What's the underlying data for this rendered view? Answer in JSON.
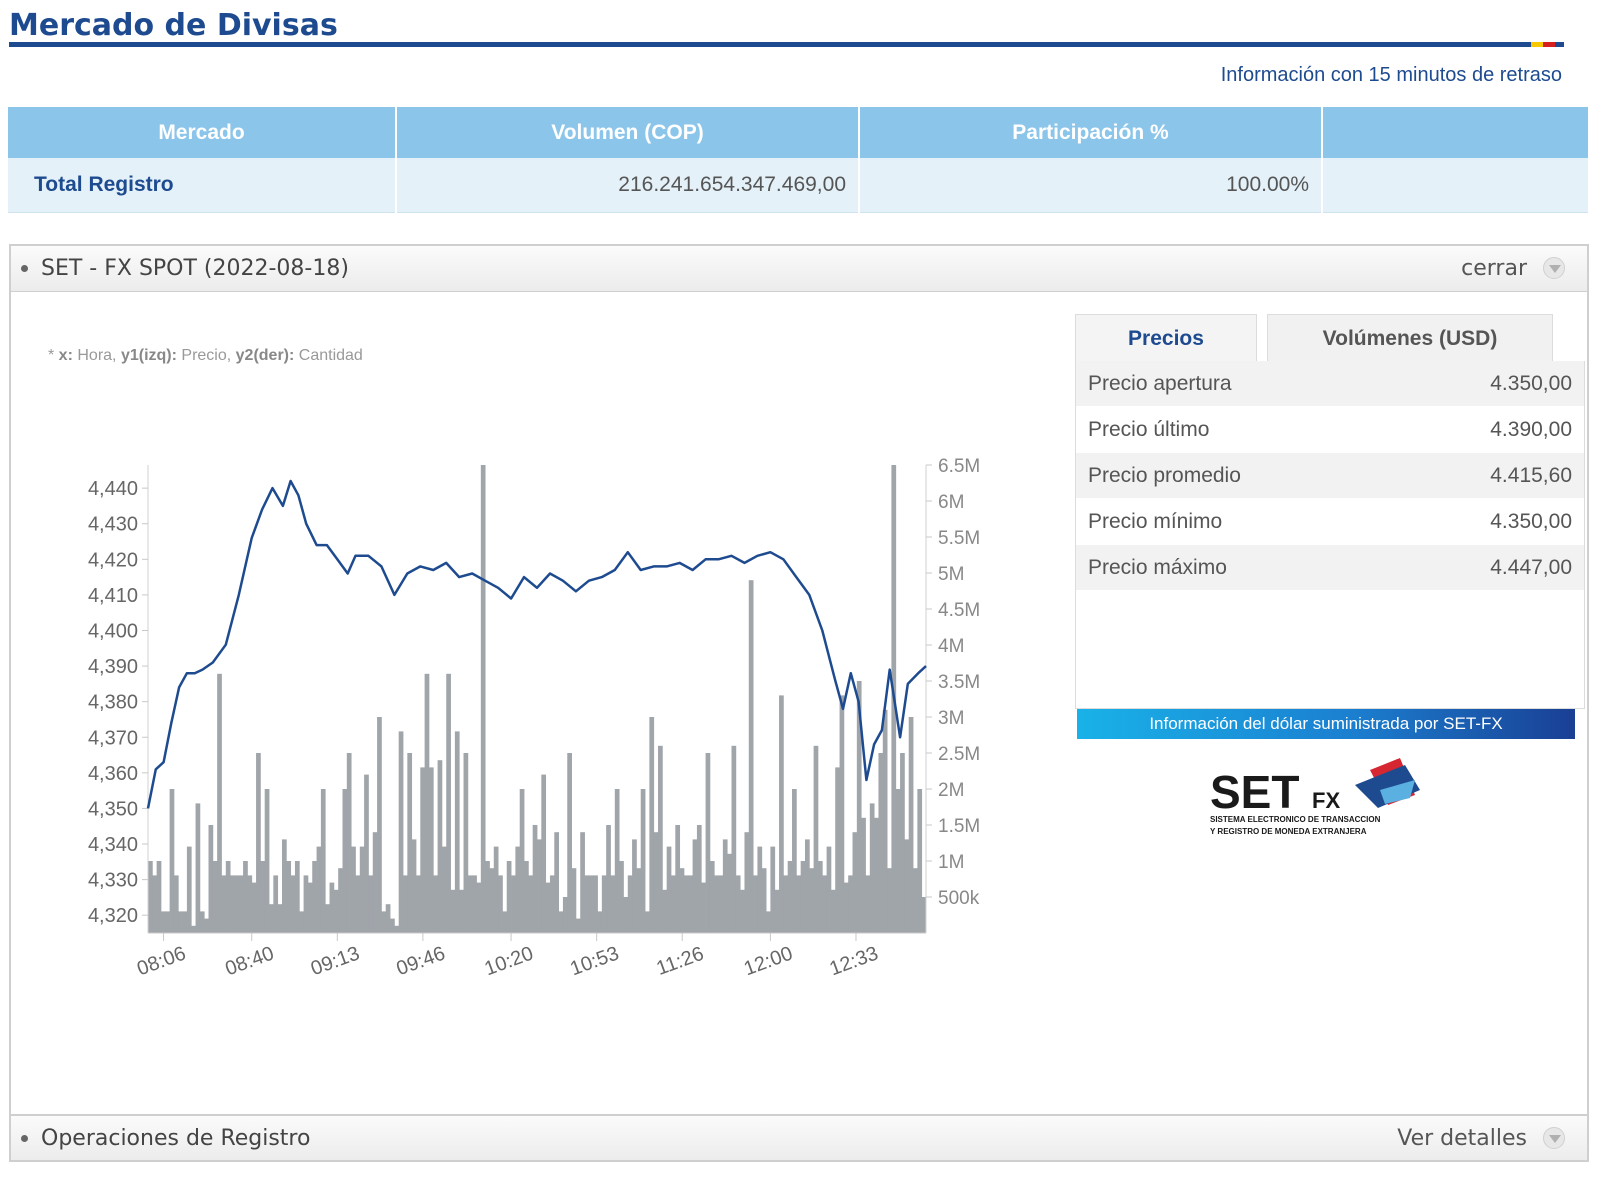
{
  "page": {
    "title": "Mercado de Divisas",
    "delay_note": "Información con 15 minutos de retraso",
    "flag_colors": [
      "#f7c700",
      "#d62020"
    ]
  },
  "market_table": {
    "headers": [
      "Mercado",
      "Volumen (COP)",
      "Participación %",
      ""
    ],
    "rows": [
      {
        "name": "Total Registro",
        "volume": "216.241.654.347.469,00",
        "share": "100.00%",
        "extra": ""
      }
    ]
  },
  "spot_panel": {
    "title": "SET - FX SPOT (2022-08-18)",
    "close_label": "cerrar",
    "chart_note": {
      "x_key": "x:",
      "x_label": "Hora,",
      "y1_key": "y1(izq):",
      "y1_label": "Precio,",
      "y2_key": "y2(der):",
      "y2_label": "Cantidad"
    },
    "tabs": [
      "Precios",
      "Volúmenes (USD)"
    ],
    "active_tab": "Precios",
    "prices": [
      {
        "label": "Precio apertura",
        "value": "4.350,00"
      },
      {
        "label": "Precio último",
        "value": "4.390,00"
      },
      {
        "label": "Precio promedio",
        "value": "4.415,60"
      },
      {
        "label": "Precio mínimo",
        "value": "4.350,00"
      },
      {
        "label": "Precio máximo",
        "value": "4.447,00"
      }
    ],
    "banner": "Información del dólar suministrada por SET-FX",
    "logo": {
      "name": "setfx-logo",
      "text": "SET",
      "sub": "FX",
      "line1": "SISTEMA ELECTRONICO DE TRANSACCION",
      "line2": "Y REGISTRO DE MONEDA EXTRANJERA"
    }
  },
  "footer": {
    "title": "Operaciones de Registro",
    "details_label": "Ver detalles"
  },
  "colors": {
    "accent": "#1e4b8f",
    "table_header": "#8cc5ea",
    "table_row": "#e4f1f8",
    "price_line": "#1e4b8f",
    "volume_bars": "#a0a5aa"
  },
  "chart_data": {
    "type": "line",
    "x_ticks": [
      "08:06",
      "08:40",
      "09:13",
      "09:46",
      "10:20",
      "10:53",
      "11:26",
      "12:00",
      "12:33"
    ],
    "x_range": [
      "08:00",
      "13:00"
    ],
    "y1": {
      "ticks": [
        "4,320",
        "4,330",
        "4,340",
        "4,350",
        "4,360",
        "4,370",
        "4,380",
        "4,390",
        "4,400",
        "4,410",
        "4,420",
        "4,430",
        "4,440"
      ],
      "min": 4315,
      "max": 4446.5
    },
    "y2": {
      "ticks": [
        "500k",
        "1M",
        "1.5M",
        "2M",
        "2.5M",
        "3M",
        "3.5M",
        "4M",
        "4.5M",
        "5M",
        "5.5M",
        "6M",
        "6.5M"
      ],
      "min": 0,
      "max": 6500000
    },
    "series": [
      {
        "kind": "line",
        "axis": "y1",
        "x": [
          "08:00",
          "08:03",
          "08:06",
          "08:09",
          "08:12",
          "08:15",
          "08:18",
          "08:21",
          "08:25",
          "08:30",
          "08:35",
          "08:40",
          "08:44",
          "08:48",
          "08:52",
          "08:55",
          "08:58",
          "09:01",
          "09:05",
          "09:09",
          "09:13",
          "09:17",
          "09:20",
          "09:25",
          "09:30",
          "09:35",
          "09:40",
          "09:45",
          "09:50",
          "09:55",
          "10:00",
          "10:05",
          "10:10",
          "10:15",
          "10:20",
          "10:25",
          "10:30",
          "10:35",
          "10:40",
          "10:45",
          "10:50",
          "10:55",
          "11:00",
          "11:05",
          "11:10",
          "11:15",
          "11:20",
          "11:25",
          "11:30",
          "11:35",
          "11:40",
          "11:45",
          "11:50",
          "11:55",
          "12:00",
          "12:05",
          "12:10",
          "12:15",
          "12:20",
          "12:25",
          "12:28",
          "12:31",
          "12:34",
          "12:37",
          "12:40",
          "12:43",
          "12:46",
          "12:50",
          "12:53",
          "12:57",
          "13:00"
        ],
        "y": [
          4350,
          4361,
          4363,
          4374,
          4384,
          4388,
          4388,
          4389,
          4391,
          4396,
          4410,
          4426,
          4434,
          4440,
          4435,
          4442,
          4438,
          4430,
          4424,
          4424,
          4420,
          4416,
          4421,
          4421,
          4418,
          4410,
          4416,
          4418,
          4417,
          4419,
          4415,
          4416,
          4414,
          4412,
          4409,
          4415,
          4412,
          4416,
          4414,
          4411,
          4414,
          4415,
          4417,
          4422,
          4417,
          4418,
          4418,
          4419,
          4417,
          4420,
          4420,
          4421,
          4419,
          4421,
          4422,
          4420,
          4415,
          4410,
          4400,
          4386,
          4378,
          4388,
          4380,
          4358,
          4368,
          4372,
          4389,
          4370,
          4385,
          4388,
          4390
        ]
      },
      {
        "kind": "bar",
        "axis": "y2",
        "values": [
          1000000,
          800000,
          1000000,
          300000,
          300000,
          2000000,
          800000,
          300000,
          300000,
          1200000,
          100000,
          1800000,
          300000,
          200000,
          1500000,
          1000000,
          3600000,
          800000,
          1000000,
          800000,
          800000,
          800000,
          1000000,
          800000,
          700000,
          2500000,
          1000000,
          2000000,
          400000,
          800000,
          400000,
          1300000,
          1000000,
          800000,
          1000000,
          300000,
          800000,
          700000,
          1000000,
          1200000,
          2000000,
          400000,
          700000,
          600000,
          900000,
          2000000,
          2500000,
          1200000,
          800000,
          1200000,
          2200000,
          800000,
          1400000,
          3000000,
          300000,
          400000,
          200000,
          100000,
          2800000,
          800000,
          2500000,
          1300000,
          800000,
          2300000,
          3600000,
          2300000,
          800000,
          2400000,
          1200000,
          3600000,
          600000,
          2800000,
          600000,
          2500000,
          800000,
          800000,
          700000,
          6500000,
          1000000,
          900000,
          1200000,
          800000,
          300000,
          1000000,
          800000,
          1200000,
          2000000,
          1000000,
          800000,
          1500000,
          1300000,
          2200000,
          700000,
          800000,
          1400000,
          300000,
          500000,
          2500000,
          900000,
          200000,
          1400000,
          800000,
          800000,
          800000,
          300000,
          800000,
          1500000,
          800000,
          2000000,
          1000000,
          500000,
          800000,
          1300000,
          900000,
          2000000,
          300000,
          3000000,
          1400000,
          2600000,
          600000,
          1200000,
          800000,
          1500000,
          900000,
          800000,
          800000,
          1300000,
          1500000,
          700000,
          2500000,
          1000000,
          800000,
          800000,
          1300000,
          1100000,
          2600000,
          800000,
          600000,
          1400000,
          4900000,
          800000,
          1200000,
          900000,
          300000,
          1200000,
          600000,
          3300000,
          800000,
          1000000,
          2000000,
          800000,
          1000000,
          1300000,
          900000,
          2600000,
          1000000,
          800000,
          1200000,
          600000,
          2300000,
          3300000,
          700000,
          800000,
          1400000,
          3500000,
          1600000,
          800000,
          1800000,
          1600000,
          2500000,
          3100000,
          900000,
          6500000,
          2000000,
          2500000,
          1300000,
          3000000,
          900000,
          2000000,
          500000
        ]
      }
    ]
  }
}
